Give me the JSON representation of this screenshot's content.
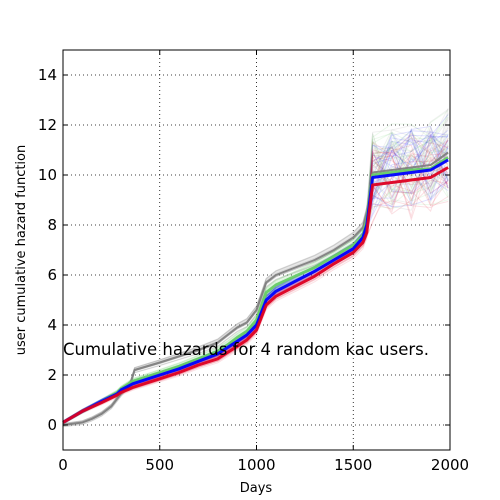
{
  "chart_data": {
    "type": "line",
    "title": "",
    "annotation": "Cumulative hazards for 4 random kac users.",
    "xlabel": "Days",
    "ylabel": "user cumulative hazard function",
    "xlim": [
      0,
      2000
    ],
    "ylim": [
      -1,
      15
    ],
    "x_ticks": [
      "0",
      "500",
      "1000",
      "1500",
      "2000"
    ],
    "y_ticks": [
      "0",
      "2",
      "4",
      "6",
      "8",
      "10",
      "12",
      "14"
    ],
    "grid": true,
    "legend": "none",
    "series": [
      {
        "color": "#808080",
        "x": [
          0,
          100,
          150,
          200,
          250,
          300,
          350,
          370,
          500,
          600,
          700,
          800,
          850,
          900,
          950,
          1000,
          1050,
          1100,
          1200,
          1300,
          1400,
          1500,
          1550,
          1570,
          1600,
          1700,
          1800,
          1900,
          1990
        ],
        "y": [
          0,
          0.1,
          0.25,
          0.45,
          0.75,
          1.25,
          1.7,
          2.2,
          2.5,
          2.75,
          3.0,
          3.3,
          3.6,
          3.9,
          4.1,
          4.6,
          5.7,
          6.0,
          6.3,
          6.6,
          7.0,
          7.5,
          7.9,
          8.5,
          10.1,
          10.2,
          10.3,
          10.4,
          10.9
        ]
      },
      {
        "color": "#66cc66",
        "x": [
          0,
          100,
          200,
          280,
          300,
          360,
          400,
          500,
          600,
          700,
          800,
          850,
          900,
          950,
          1000,
          1050,
          1100,
          1200,
          1300,
          1400,
          1500,
          1550,
          1570,
          1600,
          1700,
          1800,
          1900,
          1990
        ],
        "y": [
          0.1,
          0.55,
          0.95,
          1.3,
          1.45,
          1.75,
          1.85,
          2.1,
          2.35,
          2.65,
          2.95,
          3.2,
          3.5,
          3.75,
          4.2,
          5.3,
          5.6,
          5.95,
          6.3,
          6.75,
          7.2,
          7.6,
          8.2,
          10.0,
          10.1,
          10.2,
          10.25,
          10.7
        ]
      },
      {
        "color": "#0000ff",
        "x": [
          0,
          100,
          200,
          280,
          300,
          360,
          400,
          500,
          600,
          700,
          800,
          850,
          900,
          950,
          1000,
          1050,
          1100,
          1200,
          1300,
          1400,
          1500,
          1550,
          1570,
          1600,
          1700,
          1800,
          1900,
          1990
        ],
        "y": [
          0.1,
          0.55,
          0.95,
          1.25,
          1.4,
          1.65,
          1.75,
          2.0,
          2.25,
          2.55,
          2.85,
          3.1,
          3.35,
          3.6,
          4.0,
          5.0,
          5.35,
          5.75,
          6.15,
          6.6,
          7.05,
          7.5,
          8.0,
          9.9,
          10.0,
          10.1,
          10.2,
          10.6
        ]
      },
      {
        "color": "#dd0022",
        "x": [
          0,
          100,
          200,
          280,
          300,
          360,
          400,
          500,
          600,
          700,
          800,
          850,
          900,
          950,
          1000,
          1050,
          1100,
          1200,
          1300,
          1400,
          1500,
          1550,
          1570,
          1600,
          1700,
          1800,
          1900,
          1990
        ],
        "y": [
          0.1,
          0.55,
          0.9,
          1.2,
          1.3,
          1.5,
          1.6,
          1.85,
          2.1,
          2.4,
          2.65,
          2.9,
          3.15,
          3.4,
          3.8,
          4.8,
          5.15,
          5.55,
          5.95,
          6.45,
          6.9,
          7.3,
          7.7,
          9.6,
          9.7,
          9.8,
          9.9,
          10.3
        ]
      }
    ]
  }
}
